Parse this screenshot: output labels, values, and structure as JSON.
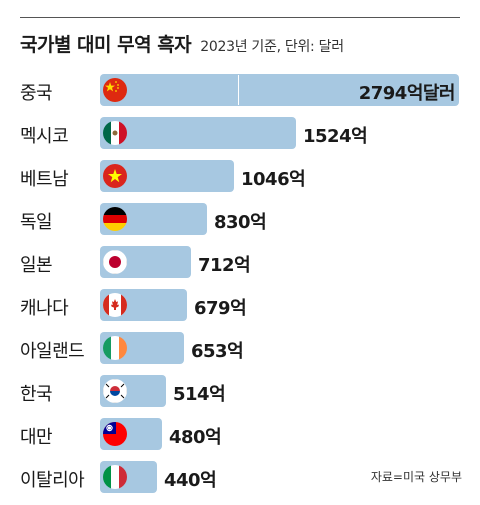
{
  "title": "국가별 대미 무역 흑자",
  "subtitle": "2023년 기준, 단위: 달러",
  "source": "자료=미국 상무부",
  "unit_suffix": "억",
  "chart_data": {
    "type": "bar",
    "orientation": "horizontal",
    "title": "국가별 대미 무역 흑자",
    "subtitle": "2023년 기준, 단위: 달러",
    "categories": [
      "중국",
      "멕시코",
      "베트남",
      "독일",
      "일본",
      "캐나다",
      "아일랜드",
      "한국",
      "대만",
      "이탈리아"
    ],
    "values": [
      2794,
      1524,
      1046,
      830,
      712,
      679,
      653,
      514,
      480,
      440
    ],
    "data_labels": [
      "2794억달러",
      "1524억",
      "1046억",
      "830억",
      "712억",
      "679억",
      "653억",
      "514억",
      "480억",
      "440억"
    ],
    "flags": [
      "china-flag",
      "mexico-flag",
      "vietnam-flag",
      "germany-flag",
      "japan-flag",
      "canada-flag",
      "ireland-flag",
      "korea-flag",
      "taiwan-flag",
      "italy-flag"
    ],
    "bar_color": "#a7c8e1",
    "xlim": [
      0,
      2794
    ],
    "grid": false,
    "legend": "none"
  }
}
